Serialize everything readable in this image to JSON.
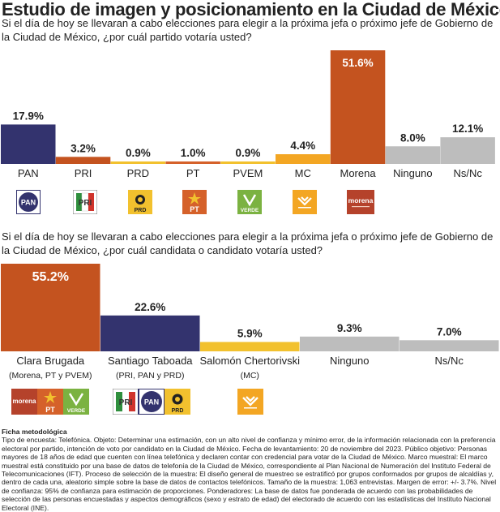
{
  "header": {
    "title": "Estudio de imagen y posicionamiento en la Ciudad de México"
  },
  "questions": {
    "q1": "Si el día de hoy se llevaran a cabo elecciones para elegir a la próxima jefa o próximo jefe de Gobierno de la Ciudad de México, ¿por cuál partido votaría usted?",
    "q2": "Si el día de hoy se llevaran a cabo elecciones para elegir a la próxima jefa o próximo jefe de Gobierno de la Ciudad de México, ¿por cuál candidata o candidato votaría usted?"
  },
  "colors": {
    "pan": "#33336e",
    "pri": "#c4531f",
    "prd": "#f2c12e",
    "pt": "#d5612a",
    "pvem": "#f2c12e",
    "mc": "#f3a623",
    "morena": "#c4531f",
    "grey": "#bdbdbd"
  },
  "chart_data": [
    {
      "type": "bar",
      "title": "¿por cuál partido votaría usted?",
      "categories": [
        "PAN",
        "PRI",
        "PRD",
        "PT",
        "PVEM",
        "MC",
        "Morena",
        "Ninguno",
        "Ns/Nc"
      ],
      "values": [
        17.9,
        3.2,
        0.9,
        1.0,
        0.9,
        4.4,
        51.6,
        8.0,
        12.1
      ],
      "value_labels": [
        "17.9%",
        "3.2%",
        "0.9%",
        "1.0%",
        "0.9%",
        "4.4%",
        "51.6%",
        "8.0%",
        "12.1%"
      ],
      "colors": [
        "#33336e",
        "#c4531f",
        "#f2c12e",
        "#d5612a",
        "#f2c12e",
        "#f3a623",
        "#c4531f",
        "#bdbdbd",
        "#bdbdbd"
      ],
      "ylim": [
        0,
        51.6
      ]
    },
    {
      "type": "bar",
      "title": "¿por cuál candidata o candidato votaría usted?",
      "categories": [
        "Clara Brugada",
        "Santiago Taboada",
        "Salomón Chertorivski",
        "Ninguno",
        "Ns/Nc"
      ],
      "subtitles": [
        "(Morena, PT y PVEM)",
        "(PRI, PAN y PRD)",
        "(MC)",
        "",
        ""
      ],
      "values": [
        55.2,
        22.6,
        5.9,
        9.3,
        7.0
      ],
      "value_labels": [
        "55.2%",
        "22.6%",
        "5.9%",
        "9.3%",
        "7.0%"
      ],
      "colors": [
        "#c4531f",
        "#33336e",
        "#f2c12e",
        "#bdbdbd",
        "#bdbdbd"
      ],
      "ylim": [
        0,
        55.2
      ]
    }
  ],
  "logos": {
    "pan": "PAN",
    "prd": "PRD",
    "pt": "PT",
    "verde": "VERDE",
    "morena": "morena"
  },
  "ficha": {
    "title": "Ficha metodológica",
    "text": "Tipo de encuesta: Telefónica. Objeto: Determinar una estimación, con un alto nivel de confianza y mínimo error, de la información relacionada con la preferencia electoral por partido, intención de voto por candidato en la Ciudad de México. Fecha de levantamiento: 20 de noviembre del 2023. Público objetivo: Personas mayores de 18 años de edad que cuenten con línea telefónica y declaren contar con credencial para votar de la Ciudad de México. Marco muestral: El marco muestral está constituido por una base de datos de telefonía de la Ciudad de México, correspondiente al Plan Nacional de Numeración del Instituto Federal de Telecomunicaciones (IFT). Proceso de selección de la muestra: El diseño general de muestreo se estratificó por grupos conformados por grupos de alcaldías y, dentro de cada una, aleatorio simple sobre la base de datos de contactos telefónicos. Tamaño de la muestra: 1,063 entrevistas. Margen de error: +/- 3.7%. Nivel de confianza: 95% de confianza para estimación de proporciones. Ponderadores: La base de datos fue ponderada de acuerdo con las probabilidades de selección de las personas encuestadas y aspectos demográficos (sexo y estrato de edad) del electorado de acuerdo con las estadísticas del Instituto Nacional Electoral (INE)."
  }
}
